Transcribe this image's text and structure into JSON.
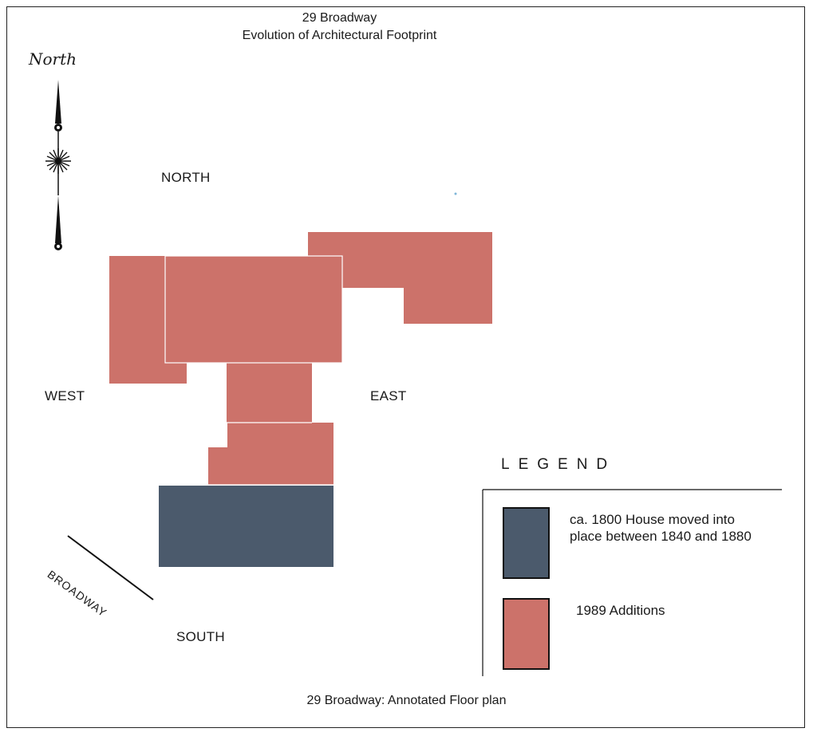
{
  "header": {
    "title_line1": "29 Broadway",
    "title_line2": "Evolution of Architectural Footprint"
  },
  "compass": {
    "label": "North",
    "icon": "compass-rose-icon"
  },
  "directions": {
    "north": "NORTH",
    "south": "SOUTH",
    "east": "EAST",
    "west": "WEST"
  },
  "street": {
    "label": "BROADWAY"
  },
  "legend": {
    "title": "LEGEND",
    "items": [
      {
        "text_line1": "ca. 1800 House moved into",
        "text_line2": "place between 1840 and 1880",
        "color": "#4b5a6c"
      },
      {
        "text_line1": "1989 Additions",
        "text_line2": "",
        "color": "#cc726a"
      }
    ]
  },
  "caption": "29 Broadway: Annotated Floor plan"
}
